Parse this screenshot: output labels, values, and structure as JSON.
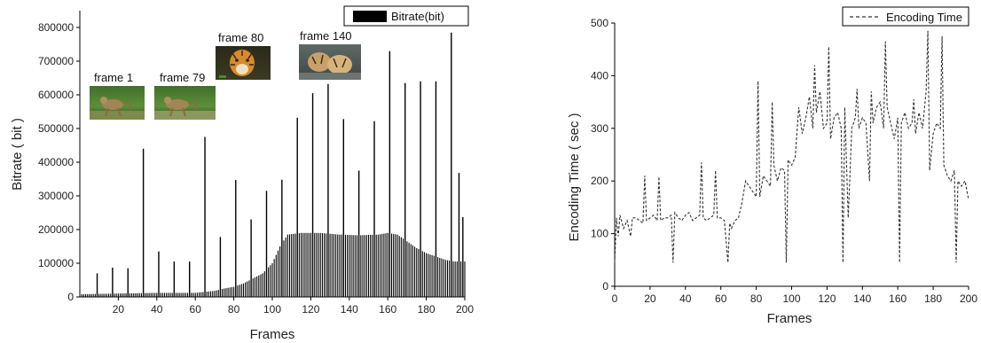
{
  "chart_data": [
    {
      "type": "bar",
      "xlabel": "Frames",
      "ylabel": "Bitrate ( bit )",
      "xlim": [
        0,
        200
      ],
      "ylim": [
        0,
        850000
      ],
      "xticks": [
        20,
        40,
        60,
        80,
        100,
        120,
        140,
        160,
        180,
        200
      ],
      "yticks": [
        0,
        100000,
        200000,
        300000,
        400000,
        500000,
        600000,
        700000,
        800000
      ],
      "legend": "top-right",
      "series": [
        {
          "name": "Bitrate(bit)",
          "color": "#000000",
          "spikes": [
            [
              9,
              70000
            ],
            [
              17,
              87000
            ],
            [
              25,
              85000
            ],
            [
              33,
              440000
            ],
            [
              41,
              135000
            ],
            [
              49,
              105000
            ],
            [
              57,
              105000
            ],
            [
              65,
              475000
            ],
            [
              73,
              178000
            ],
            [
              81,
              347000
            ],
            [
              89,
              230000
            ],
            [
              97,
              315000
            ],
            [
              105,
              348000
            ],
            [
              113,
              532000
            ],
            [
              121,
              605000
            ],
            [
              129,
              632000
            ],
            [
              137,
              528000
            ],
            [
              145,
              375000
            ],
            [
              153,
              522000
            ],
            [
              161,
              730000
            ],
            [
              169,
              635000
            ],
            [
              177,
              640000
            ],
            [
              185,
              640000
            ],
            [
              193,
              785000
            ],
            [
              197,
              368000
            ],
            [
              199,
              237000
            ]
          ],
          "baseline": [
            [
              1,
              8000
            ],
            [
              20,
              10000
            ],
            [
              40,
              12000
            ],
            [
              60,
              12000
            ],
            [
              70,
              18000
            ],
            [
              75,
              25000
            ],
            [
              80,
              30000
            ],
            [
              85,
              40000
            ],
            [
              90,
              55000
            ],
            [
              95,
              70000
            ],
            [
              100,
              100000
            ],
            [
              104,
              150000
            ],
            [
              108,
              185000
            ],
            [
              115,
              190000
            ],
            [
              125,
              190000
            ],
            [
              135,
              185000
            ],
            [
              145,
              183000
            ],
            [
              155,
              185000
            ],
            [
              160,
              190000
            ],
            [
              165,
              185000
            ],
            [
              170,
              165000
            ],
            [
              175,
              145000
            ],
            [
              180,
              130000
            ],
            [
              185,
              120000
            ],
            [
              190,
              110000
            ],
            [
              195,
              105000
            ],
            [
              200,
              105000
            ]
          ]
        }
      ],
      "annotations": [
        {
          "label": "frame 1",
          "thumb": "monkey"
        },
        {
          "label": "frame 79",
          "thumb": "monkey"
        },
        {
          "label": "frame 80",
          "thumb": "tiger"
        },
        {
          "label": "frame 140",
          "thumb": "tigers-water"
        }
      ]
    },
    {
      "type": "line",
      "xlabel": "Frames",
      "ylabel": "Encoding Time ( sec )",
      "xlim": [
        0,
        200
      ],
      "ylim": [
        0,
        500
      ],
      "xticks": [
        0,
        20,
        40,
        60,
        80,
        100,
        120,
        140,
        160,
        180,
        200
      ],
      "yticks": [
        0,
        100,
        200,
        300,
        400,
        500
      ],
      "legend": "top-right",
      "series": [
        {
          "name": "Encoding Time",
          "color": "#333333",
          "x": [
            0,
            1,
            2,
            3,
            5,
            7,
            9,
            10,
            12,
            14,
            16,
            17,
            18,
            20,
            22,
            24,
            25,
            26,
            28,
            30,
            32,
            33,
            34,
            36,
            38,
            40,
            42,
            44,
            46,
            48,
            49,
            50,
            52,
            54,
            56,
            57,
            58,
            60,
            62,
            64,
            65,
            66,
            68,
            70,
            72,
            74,
            76,
            78,
            80,
            81,
            82,
            84,
            86,
            88,
            89,
            90,
            92,
            94,
            96,
            97,
            98,
            100,
            102,
            104,
            106,
            108,
            110,
            112,
            113,
            114,
            116,
            118,
            120,
            121,
            122,
            124,
            126,
            128,
            129,
            130,
            132,
            134,
            136,
            137,
            138,
            140,
            142,
            144,
            145,
            146,
            148,
            150,
            152,
            153,
            154,
            156,
            158,
            160,
            161,
            162,
            164,
            166,
            168,
            169,
            170,
            172,
            174,
            176,
            177,
            178,
            180,
            182,
            184,
            185,
            186,
            188,
            190,
            192,
            193,
            194,
            196,
            198,
            200
          ],
          "y": [
            45,
            130,
            95,
            135,
            110,
            125,
            95,
            130,
            130,
            125,
            120,
            210,
            125,
            130,
            135,
            125,
            208,
            125,
            130,
            130,
            135,
            45,
            140,
            130,
            125,
            135,
            140,
            125,
            130,
            135,
            235,
            130,
            125,
            130,
            135,
            220,
            130,
            130,
            125,
            45,
            120,
            110,
            125,
            130,
            160,
            200,
            190,
            180,
            170,
            390,
            170,
            210,
            200,
            190,
            350,
            230,
            200,
            225,
            220,
            45,
            240,
            230,
            245,
            340,
            290,
            320,
            360,
            300,
            420,
            330,
            370,
            300,
            310,
            455,
            280,
            320,
            330,
            300,
            45,
            340,
            130,
            300,
            320,
            375,
            300,
            320,
            310,
            200,
            370,
            310,
            340,
            350,
            300,
            465,
            340,
            310,
            280,
            320,
            45,
            310,
            330,
            300,
            310,
            355,
            290,
            330,
            300,
            370,
            485,
            220,
            290,
            310,
            300,
            475,
            230,
            210,
            200,
            220,
            45,
            200,
            190,
            200,
            165
          ]
        }
      ]
    }
  ]
}
